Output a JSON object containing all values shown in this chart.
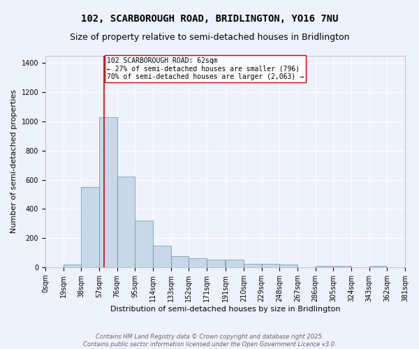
{
  "title": "102, SCARBOROUGH ROAD, BRIDLINGTON, YO16 7NU",
  "subtitle": "Size of property relative to semi-detached houses in Bridlington",
  "xlabel": "Distribution of semi-detached houses by size in Bridlington",
  "ylabel": "Number of semi-detached properties",
  "bin_edges": [
    0,
    19,
    38,
    57,
    76,
    95,
    114,
    133,
    152,
    171,
    191,
    210,
    229,
    248,
    267,
    286,
    305,
    324,
    343,
    362,
    381
  ],
  "bar_heights": [
    0,
    20,
    550,
    1030,
    620,
    320,
    150,
    75,
    60,
    50,
    50,
    25,
    25,
    20,
    0,
    10,
    10,
    0,
    10,
    0
  ],
  "bar_color": "#c8d8e8",
  "bar_edge_color": "#6090b0",
  "property_size": 62,
  "property_line_color": "#cc0000",
  "annotation_text": "102 SCARBOROUGH ROAD: 62sqm\n← 27% of semi-detached houses are smaller (796)\n70% of semi-detached houses are larger (2,063) →",
  "annotation_box_color": "#ffffff",
  "annotation_box_edge_color": "#cc0000",
  "ylim": [
    0,
    1450
  ],
  "yticks": [
    0,
    200,
    400,
    600,
    800,
    1000,
    1200,
    1400
  ],
  "background_color": "#eef2fc",
  "grid_color": "#ffffff",
  "footer_line1": "Contains HM Land Registry data © Crown copyright and database right 2025.",
  "footer_line2": "Contains public sector information licensed under the Open Government Licence v3.0.",
  "title_fontsize": 10,
  "subtitle_fontsize": 9,
  "label_fontsize": 8,
  "tick_fontsize": 7,
  "annotation_fontsize": 7,
  "footer_fontsize": 6
}
